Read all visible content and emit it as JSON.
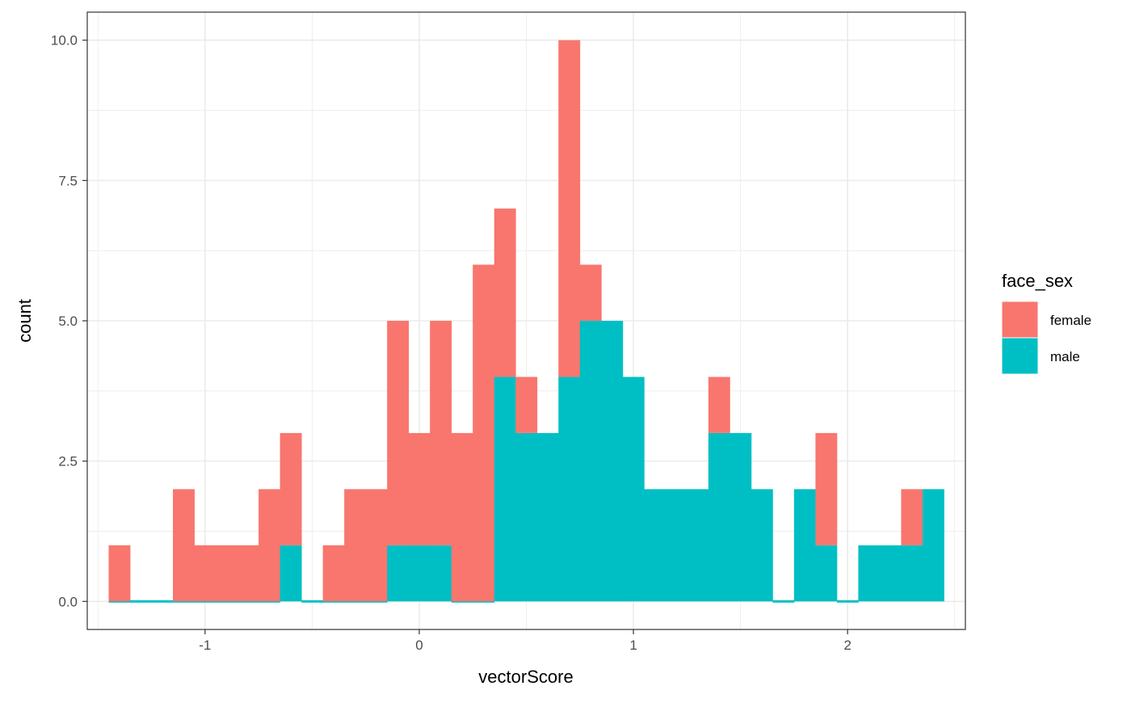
{
  "chart_data": {
    "type": "bar",
    "subtype": "stacked-histogram",
    "xlabel": "vectorScore",
    "ylabel": "count",
    "xlim": [
      -1.55,
      2.55
    ],
    "ylim": [
      -0.5,
      10.5
    ],
    "xticks": [
      -1,
      0,
      1,
      2
    ],
    "xtick_labels": [
      "-1",
      "0",
      "1",
      "2"
    ],
    "yticks": [
      0,
      2.5,
      5,
      7.5,
      10
    ],
    "ytick_labels": [
      "0.0",
      "2.5",
      "5.0",
      "7.5",
      "10.0"
    ],
    "grid": true,
    "bin_start": -1.45,
    "bin_width": 0.1,
    "legend": {
      "title": "face_sex",
      "position": "right"
    },
    "series": [
      {
        "name": "female",
        "color": "#F8766D",
        "values": [
          1,
          0,
          0,
          2,
          1,
          1,
          1,
          2,
          2,
          0,
          1,
          2,
          2,
          4,
          2,
          4,
          3,
          6,
          3,
          1,
          0,
          6,
          1,
          0,
          0,
          0,
          0,
          0,
          1,
          0,
          0,
          0,
          0,
          2,
          0,
          0,
          0,
          1,
          0,
          0,
          0,
          0,
          0,
          0,
          0,
          0,
          0,
          0,
          0,
          0,
          0,
          0,
          0,
          0,
          0,
          0,
          0,
          0,
          0,
          0
        ]
      },
      {
        "name": "male",
        "color": "#00BFC4",
        "values": [
          0,
          0,
          0,
          0,
          0,
          0,
          0,
          0,
          1,
          0,
          0,
          0,
          0,
          1,
          1,
          1,
          0,
          0,
          4,
          3,
          3,
          4,
          5,
          5,
          4,
          2,
          2,
          2,
          3,
          3,
          2,
          0,
          2,
          1,
          0,
          1,
          1,
          1,
          2
        ]
      }
    ]
  }
}
